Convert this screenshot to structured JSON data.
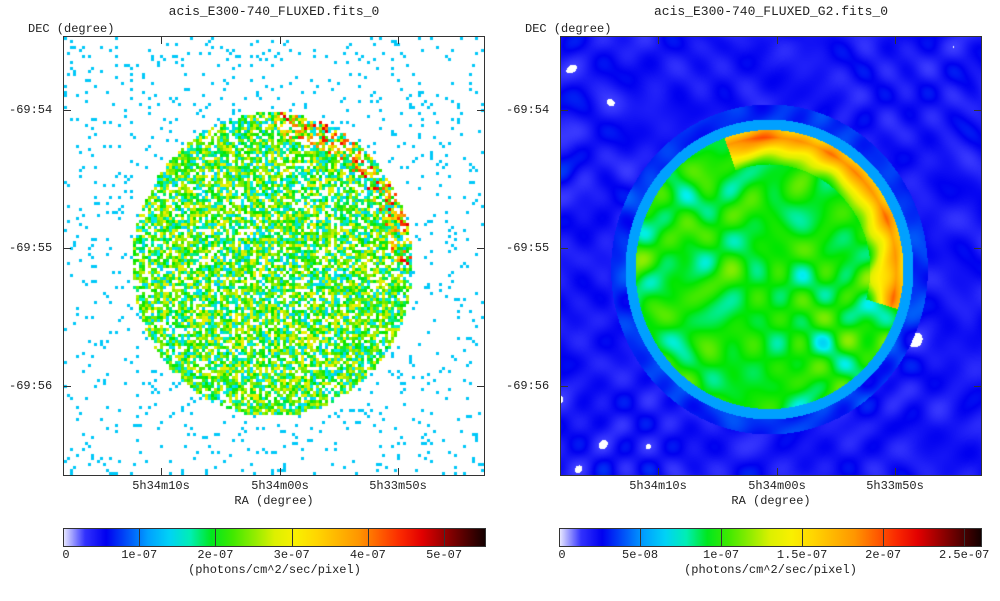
{
  "chart_data": [
    {
      "type": "heatmap",
      "title": "acis_E300-740_FLUXED.fits_0",
      "xlabel": "RA (degree)",
      "ylabel": "DEC (degree)",
      "x_ticks": [
        "5h34m10s",
        "5h34m00s",
        "5h33m50s"
      ],
      "y_ticks": [
        "-69:54",
        "-69:55",
        "-69:56"
      ],
      "colorbar": {
        "label": "(photons/cm^2/sec/pixel)",
        "ticks": [
          "0",
          "1e-07",
          "2e-07",
          "3e-07",
          "4e-07",
          "5e-07"
        ],
        "tick_values": [
          0,
          1e-07,
          2e-07,
          3e-07,
          4e-07,
          5e-07
        ],
        "range": [
          0,
          5.55e-07
        ]
      }
    },
    {
      "type": "heatmap",
      "title": "acis_E300-740_FLUXED_G2.fits_0",
      "xlabel": "RA (degree)",
      "ylabel": "DEC (degree)",
      "x_ticks": [
        "5h34m10s",
        "5h34m00s",
        "5h33m50s"
      ],
      "y_ticks": [
        "-69:54",
        "-69:55",
        "-69:56"
      ],
      "colorbar": {
        "label": "(photons/cm^2/sec/pixel)",
        "ticks": [
          "0",
          "5e-08",
          "1e-07",
          "1.5e-07",
          "2e-07",
          "2.5e-07"
        ],
        "tick_values": [
          0,
          5e-08,
          1e-07,
          1.5e-07,
          2e-07,
          2.5e-07
        ],
        "range": [
          0,
          2.61e-07
        ]
      }
    }
  ]
}
